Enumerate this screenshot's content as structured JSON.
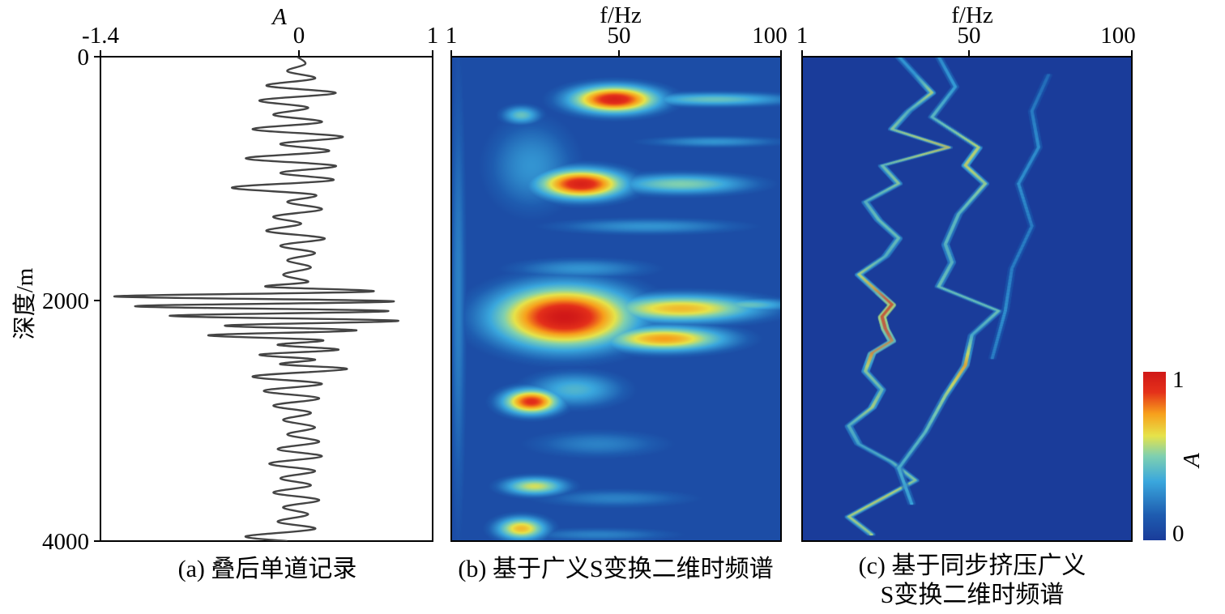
{
  "chart_data": [
    {
      "id": "panel-a",
      "type": "line",
      "caption": "(a) 叠后单道记录",
      "xlabel": "A",
      "ylabel": "深度/m",
      "xlim": [
        -1.4,
        1
      ],
      "ylim": [
        0,
        4000
      ],
      "xticks": [
        "-1.4",
        "0",
        "1"
      ],
      "yticks": [
        "0",
        "2000",
        "4000"
      ],
      "series": [
        {
          "line_color": "#444444",
          "depth": [
            0,
            60,
            120,
            180,
            240,
            300,
            360,
            420,
            480,
            540,
            600,
            660,
            720,
            780,
            840,
            900,
            960,
            1020,
            1080,
            1140,
            1200,
            1260,
            1320,
            1380,
            1440,
            1500,
            1560,
            1620,
            1680,
            1740,
            1800,
            1860,
            1900,
            1940,
            1980,
            2020,
            2060,
            2100,
            2140,
            2180,
            2220,
            2260,
            2300,
            2340,
            2380,
            2420,
            2460,
            2500,
            2540,
            2580,
            2640,
            2700,
            2760,
            2820,
            2880,
            2940,
            3000,
            3060,
            3120,
            3180,
            3240,
            3300,
            3360,
            3420,
            3480,
            3540,
            3600,
            3660,
            3720,
            3780,
            3840,
            3900,
            3960,
            4000
          ],
          "amplitude": [
            0.02,
            0.08,
            -0.05,
            0.15,
            -0.2,
            0.3,
            -0.25,
            0.1,
            -0.15,
            0.2,
            -0.3,
            0.35,
            -0.1,
            0.25,
            -0.35,
            0.3,
            -0.1,
            0.28,
            -0.45,
            0.15,
            -0.05,
            0.2,
            -0.15,
            0.05,
            -0.2,
            0.22,
            -0.1,
            0.15,
            -0.05,
            0.12,
            -0.08,
            0.1,
            -0.2,
            0.55,
            -1.3,
            0.72,
            -1.15,
            0.68,
            -0.9,
            0.75,
            -0.5,
            0.45,
            -0.62,
            0.2,
            -0.12,
            0.32,
            -0.25,
            0.15,
            -0.1,
            0.38,
            -0.3,
            0.2,
            -0.22,
            0.18,
            -0.15,
            0.12,
            -0.08,
            0.15,
            -0.05,
            0.18,
            -0.12,
            0.2,
            -0.18,
            0.15,
            -0.1,
            0.12,
            -0.15,
            0.18,
            -0.08,
            0.1,
            -0.12,
            0.15,
            -0.35,
            -0.05
          ]
        }
      ]
    },
    {
      "id": "panel-b",
      "type": "heatmap",
      "caption": "(b) 基于广义S变换二维时频谱",
      "xlabel": "f/Hz",
      "xlim": [
        1,
        100
      ],
      "ylim": [
        0,
        4000
      ],
      "xticks": [
        "1",
        "50",
        "100"
      ],
      "background_level": 0.08,
      "blobs": [
        {
          "f": 3,
          "depth": 2000,
          "rf": 2.5,
          "rd": 2000,
          "a": 0.25
        },
        {
          "f": 25,
          "depth": 900,
          "rf": 14,
          "rd": 400,
          "a": 0.3
        },
        {
          "f": 50,
          "depth": 350,
          "rf": 14,
          "rd": 120,
          "a": 0.95
        },
        {
          "f": 80,
          "depth": 350,
          "rf": 25,
          "rd": 60,
          "a": 0.45
        },
        {
          "f": 22,
          "depth": 480,
          "rf": 6,
          "rd": 80,
          "a": 0.45
        },
        {
          "f": 40,
          "depth": 1050,
          "rf": 14,
          "rd": 130,
          "a": 0.95
        },
        {
          "f": 70,
          "depth": 1050,
          "rf": 22,
          "rd": 90,
          "a": 0.5
        },
        {
          "f": 80,
          "depth": 700,
          "rf": 22,
          "rd": 50,
          "a": 0.3
        },
        {
          "f": 60,
          "depth": 1400,
          "rf": 30,
          "rd": 70,
          "a": 0.3
        },
        {
          "f": 40,
          "depth": 1750,
          "rf": 22,
          "rd": 90,
          "a": 0.3
        },
        {
          "f": 35,
          "depth": 2150,
          "rf": 22,
          "rd": 270,
          "a": 1.0
        },
        {
          "f": 70,
          "depth": 2080,
          "rf": 25,
          "rd": 120,
          "a": 0.7
        },
        {
          "f": 65,
          "depth": 2330,
          "rf": 20,
          "rd": 110,
          "a": 0.75
        },
        {
          "f": 90,
          "depth": 2050,
          "rf": 15,
          "rd": 60,
          "a": 0.45
        },
        {
          "f": 25,
          "depth": 2850,
          "rf": 9,
          "rd": 110,
          "a": 0.9
        },
        {
          "f": 38,
          "depth": 2750,
          "rf": 15,
          "rd": 150,
          "a": 0.4
        },
        {
          "f": 45,
          "depth": 3200,
          "rf": 22,
          "rd": 120,
          "a": 0.25
        },
        {
          "f": 26,
          "depth": 3550,
          "rf": 10,
          "rd": 80,
          "a": 0.6
        },
        {
          "f": 50,
          "depth": 3650,
          "rf": 25,
          "rd": 80,
          "a": 0.25
        },
        {
          "f": 22,
          "depth": 3900,
          "rf": 8,
          "rd": 100,
          "a": 0.7
        },
        {
          "f": 45,
          "depth": 3950,
          "rf": 25,
          "rd": 60,
          "a": 0.25
        }
      ]
    },
    {
      "id": "panel-c",
      "type": "heatmap",
      "caption_lines": [
        "(c) 基于同步挤压广义",
        "S变换二维时频谱"
      ],
      "xlabel": "f/Hz",
      "xlim": [
        1,
        100
      ],
      "ylim": [
        0,
        4000
      ],
      "xticks": [
        "1",
        "50",
        "100"
      ],
      "ridges": [
        {
          "amp": [
            0.35,
            0.35,
            0.6,
            0.45,
            0.55,
            0.7,
            0.5,
            0.55,
            0.45,
            0.5,
            0.5,
            0.45,
            0.6,
            0.8,
            1.0,
            1.0,
            0.95,
            0.8,
            0.8,
            0.55,
            0.5,
            0.6,
            0.45,
            0.4,
            0.45,
            0.55,
            0.65,
            0.6,
            0.55
          ],
          "depth": [
            0,
            150,
            300,
            450,
            600,
            750,
            900,
            1050,
            1200,
            1350,
            1500,
            1650,
            1800,
            1950,
            2050,
            2150,
            2250,
            2350,
            2450,
            2600,
            2750,
            2900,
            3050,
            3200,
            3350,
            3500,
            3650,
            3800,
            3950
          ],
          "f": [
            30,
            35,
            40,
            33,
            28,
            45,
            25,
            30,
            20,
            24,
            30,
            26,
            18,
            24,
            28,
            25,
            26,
            28,
            22,
            20,
            25,
            22,
            15,
            18,
            28,
            35,
            25,
            15,
            22
          ]
        },
        {
          "amp": [
            0.3,
            0.35,
            0.45,
            0.6,
            0.65,
            0.55,
            0.45,
            0.45,
            0.45,
            0.5,
            0.5,
            0.4,
            0.75,
            0.55,
            0.45,
            0.4,
            0.35
          ],
          "depth": [
            0,
            250,
            500,
            750,
            900,
            1050,
            1300,
            1550,
            1700,
            1900,
            2100,
            2300,
            2550,
            2800,
            3100,
            3400,
            3700
          ],
          "f": [
            42,
            47,
            40,
            54,
            50,
            56,
            48,
            44,
            46,
            42,
            60,
            52,
            50,
            44,
            38,
            30,
            34
          ]
        },
        {
          "amp": [
            0.2,
            0.25,
            0.3,
            0.3,
            0.25,
            0.25,
            0.3,
            0.25
          ],
          "depth": [
            150,
            450,
            750,
            1050,
            1400,
            1750,
            2100,
            2500
          ],
          "f": [
            75,
            70,
            72,
            66,
            70,
            64,
            62,
            58
          ]
        }
      ],
      "colorbar": {
        "min_label": "0",
        "max_label": "1",
        "label": "A"
      }
    }
  ]
}
